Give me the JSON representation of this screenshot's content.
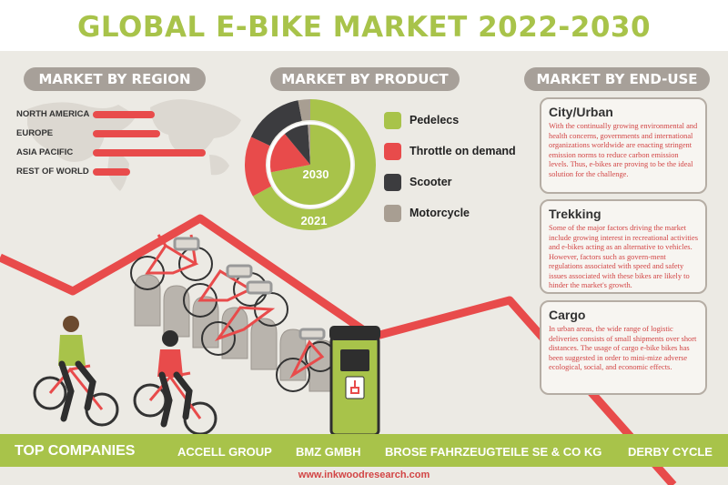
{
  "title": "GLOBAL E-BIKE MARKET 2022-2030",
  "sections": {
    "region": "MARKET BY REGION",
    "product": "MARKET BY PRODUCT",
    "end_use": "MARKET BY END-USE"
  },
  "regions": [
    {
      "label": "NORTH AMERICA",
      "share": 0.55
    },
    {
      "label": "EUROPE",
      "share": 0.6
    },
    {
      "label": "ASIA PACIFIC",
      "share": 1.0
    },
    {
      "label": "REST OF WORLD",
      "share": 0.33
    }
  ],
  "product_chart": {
    "inner_label": "2030",
    "outer_label": "2021",
    "legend": [
      {
        "label": "Pedelecs",
        "color": "#a8c34a"
      },
      {
        "label": "Throttle on demand",
        "color": "#e84b4b"
      },
      {
        "label": "Scooter",
        "color": "#3c3c3f"
      },
      {
        "label": "Motorcycle",
        "color": "#a89e92"
      }
    ],
    "rings": [
      {
        "year": "2021",
        "values": [
          0.67,
          0.15,
          0.15,
          0.03
        ]
      },
      {
        "year": "2030",
        "values": [
          0.72,
          0.17,
          0.1,
          0.01
        ]
      }
    ]
  },
  "end_use": [
    {
      "title": "City/Urban",
      "text": "With the continually growing environmental and health concerns, governments and international organizations worldwide are enacting stringent emission norms to reduce carbon emission levels. Thus, e-bikes are proving to be the ideal solution for the challenge."
    },
    {
      "title": "Trekking",
      "text": "Some of the major factors driving the market include growing interest in recreational activities and e-bikes acting as an alternative to vehicles. However, factors such as govern-ment regulations associated with speed and safety issues associated with these bikes are likely to hinder the market's growth."
    },
    {
      "title": "Cargo",
      "text": "In urban areas, the wide range of logistic deliveries consists of small shipments over short distances. The usage of cargo e-bike bikes has been suggested in order to mini-mize adverse ecological, social, and economic effects."
    }
  ],
  "footer": {
    "heading": "TOP COMPANIES",
    "companies": [
      "ACCELL GROUP",
      "BMZ GMBH",
      "BROSE FAHRZEUGTEILE SE & CO KG",
      "DERBY CYCLE"
    ]
  },
  "url": "www.inkwoodresearch.com",
  "colors": {
    "green": "#a8c34a",
    "red": "#e84b4b",
    "dark": "#3c3c3f",
    "taupe": "#a89e92"
  }
}
